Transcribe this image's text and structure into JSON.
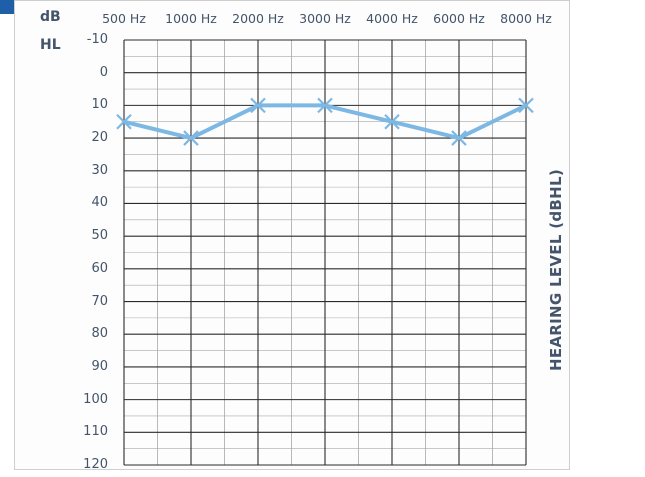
{
  "chart_data": {
    "type": "line",
    "unit_top": "dB",
    "unit_bottom": "HL",
    "x": [
      "500 Hz",
      "1000 Hz",
      "2000 Hz",
      "3000 Hz",
      "4000 Hz",
      "6000 Hz",
      "8000 Hz"
    ],
    "y_ticks": [
      "-10",
      "0",
      "10",
      "20",
      "30",
      "40",
      "50",
      "60",
      "70",
      "80",
      "90",
      "100",
      "110",
      "120"
    ],
    "ylim": [
      -10,
      120
    ],
    "y_inverted": true,
    "ylabel": "HEARING LEVEL (dBHL)",
    "series": [
      {
        "values": [
          15,
          20,
          10,
          10,
          15,
          20,
          10
        ],
        "marker": "x",
        "color": "#7db8e4"
      }
    ],
    "grid": true,
    "grid_color": "#2b2b2b",
    "minor_grid_color": "#a8a8a8",
    "text_color": "#44546a"
  }
}
